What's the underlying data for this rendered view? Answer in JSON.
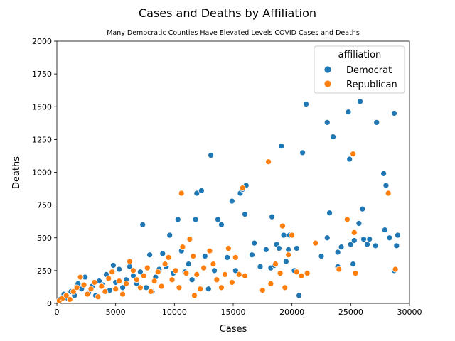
{
  "chart_data": {
    "type": "scatter",
    "title": "Cases and Deaths by Affiliation",
    "subtitle": "Many Democratic Counties Have Elevated Levels COVID Cases and Deaths",
    "xlabel": "Cases",
    "ylabel": "Deaths",
    "xlim": [
      0,
      30000
    ],
    "ylim": [
      0,
      2000
    ],
    "xticks": [
      0,
      5000,
      10000,
      15000,
      20000,
      25000,
      30000
    ],
    "yticks": [
      0,
      250,
      500,
      750,
      1000,
      1250,
      1500,
      1750,
      2000
    ],
    "grid": false,
    "legend": {
      "title": "affiliation",
      "placement": "top-right"
    },
    "series": [
      {
        "name": "Democrat",
        "color": "#1f77b4",
        "points": [
          [
            300,
            30
          ],
          [
            600,
            70
          ],
          [
            900,
            40
          ],
          [
            1200,
            90
          ],
          [
            1500,
            60
          ],
          [
            1800,
            150
          ],
          [
            2100,
            110
          ],
          [
            2400,
            200
          ],
          [
            2700,
            80
          ],
          [
            3000,
            130
          ],
          [
            3300,
            60
          ],
          [
            3600,
            170
          ],
          [
            3900,
            140
          ],
          [
            4200,
            220
          ],
          [
            4500,
            100
          ],
          [
            4800,
            290
          ],
          [
            5000,
            160
          ],
          [
            5300,
            260
          ],
          [
            5600,
            120
          ],
          [
            5900,
            180
          ],
          [
            6200,
            280
          ],
          [
            6500,
            210
          ],
          [
            6800,
            150
          ],
          [
            7100,
            240
          ],
          [
            7300,
            600
          ],
          [
            7600,
            120
          ],
          [
            7900,
            370
          ],
          [
            8100,
            90
          ],
          [
            8400,
            200
          ],
          [
            8700,
            260
          ],
          [
            9000,
            380
          ],
          [
            9300,
            280
          ],
          [
            9600,
            520
          ],
          [
            9900,
            230
          ],
          [
            10300,
            640
          ],
          [
            10600,
            400
          ],
          [
            10900,
            240
          ],
          [
            11200,
            300
          ],
          [
            11500,
            180
          ],
          [
            11800,
            640
          ],
          [
            11900,
            840
          ],
          [
            12300,
            860
          ],
          [
            12600,
            360
          ],
          [
            12900,
            110
          ],
          [
            13100,
            1130
          ],
          [
            13400,
            250
          ],
          [
            13700,
            640
          ],
          [
            14000,
            600
          ],
          [
            14500,
            350
          ],
          [
            14900,
            780
          ],
          [
            15200,
            250
          ],
          [
            15600,
            840
          ],
          [
            15800,
            870
          ],
          [
            16000,
            680
          ],
          [
            16100,
            900
          ],
          [
            16600,
            370
          ],
          [
            16800,
            460
          ],
          [
            17300,
            280
          ],
          [
            17800,
            410
          ],
          [
            18200,
            270
          ],
          [
            18300,
            660
          ],
          [
            18500,
            290
          ],
          [
            18700,
            450
          ],
          [
            18900,
            420
          ],
          [
            19100,
            1200
          ],
          [
            19300,
            520
          ],
          [
            19500,
            320
          ],
          [
            19700,
            410
          ],
          [
            19800,
            520
          ],
          [
            20200,
            250
          ],
          [
            20400,
            420
          ],
          [
            20600,
            60
          ],
          [
            20900,
            1150
          ],
          [
            21200,
            1520
          ],
          [
            22500,
            360
          ],
          [
            23000,
            500
          ],
          [
            23000,
            1380
          ],
          [
            23200,
            690
          ],
          [
            23500,
            1270
          ],
          [
            23900,
            390
          ],
          [
            23900,
            280
          ],
          [
            24200,
            430
          ],
          [
            24800,
            1460
          ],
          [
            24900,
            1100
          ],
          [
            25000,
            450
          ],
          [
            25200,
            300
          ],
          [
            25300,
            480
          ],
          [
            25700,
            610
          ],
          [
            25800,
            1540
          ],
          [
            26000,
            720
          ],
          [
            26100,
            490
          ],
          [
            26400,
            450
          ],
          [
            26600,
            490
          ],
          [
            27100,
            440
          ],
          [
            27200,
            1380
          ],
          [
            27800,
            990
          ],
          [
            27900,
            560
          ],
          [
            28000,
            900
          ],
          [
            28300,
            500
          ],
          [
            28700,
            1450
          ],
          [
            28700,
            250
          ],
          [
            28900,
            440
          ],
          [
            29000,
            520
          ]
        ]
      },
      {
        "name": "Republican",
        "color": "#ff7f0e",
        "points": [
          [
            200,
            20
          ],
          [
            500,
            40
          ],
          [
            800,
            60
          ],
          [
            1100,
            30
          ],
          [
            1400,
            90
          ],
          [
            1700,
            120
          ],
          [
            2000,
            200
          ],
          [
            2300,
            140
          ],
          [
            2600,
            70
          ],
          [
            2900,
            110
          ],
          [
            3200,
            160
          ],
          [
            3500,
            50
          ],
          [
            3800,
            130
          ],
          [
            4100,
            90
          ],
          [
            4400,
            190
          ],
          [
            4700,
            240
          ],
          [
            5000,
            110
          ],
          [
            5300,
            170
          ],
          [
            5600,
            70
          ],
          [
            5900,
            150
          ],
          [
            6200,
            320
          ],
          [
            6500,
            250
          ],
          [
            6800,
            180
          ],
          [
            7100,
            120
          ],
          [
            7400,
            210
          ],
          [
            7700,
            270
          ],
          [
            8000,
            90
          ],
          [
            8300,
            170
          ],
          [
            8600,
            240
          ],
          [
            8900,
            130
          ],
          [
            9200,
            300
          ],
          [
            9500,
            350
          ],
          [
            9800,
            180
          ],
          [
            10100,
            250
          ],
          [
            10400,
            120
          ],
          [
            10600,
            840
          ],
          [
            10700,
            430
          ],
          [
            11000,
            230
          ],
          [
            11300,
            490
          ],
          [
            11600,
            360
          ],
          [
            11700,
            60
          ],
          [
            11900,
            220
          ],
          [
            12200,
            110
          ],
          [
            12500,
            270
          ],
          [
            13000,
            400
          ],
          [
            13300,
            300
          ],
          [
            13600,
            180
          ],
          [
            14000,
            120
          ],
          [
            14300,
            220
          ],
          [
            14600,
            420
          ],
          [
            14900,
            160
          ],
          [
            15200,
            350
          ],
          [
            15500,
            220
          ],
          [
            15800,
            880
          ],
          [
            16000,
            210
          ],
          [
            17500,
            100
          ],
          [
            18000,
            1080
          ],
          [
            18200,
            150
          ],
          [
            18600,
            300
          ],
          [
            19000,
            230
          ],
          [
            19200,
            590
          ],
          [
            19400,
            120
          ],
          [
            19700,
            370
          ],
          [
            20000,
            520
          ],
          [
            20400,
            240
          ],
          [
            20800,
            210
          ],
          [
            21300,
            230
          ],
          [
            22000,
            460
          ],
          [
            24000,
            260
          ],
          [
            24700,
            640
          ],
          [
            25200,
            1140
          ],
          [
            25300,
            540
          ],
          [
            25400,
            230
          ],
          [
            28200,
            840
          ],
          [
            28800,
            260
          ]
        ]
      }
    ]
  }
}
